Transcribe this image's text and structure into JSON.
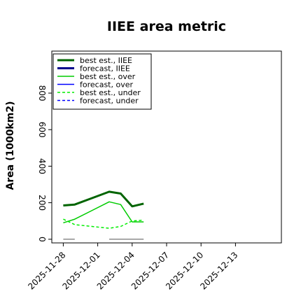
{
  "chart_data": {
    "type": "line",
    "title": "IIEE area metric",
    "ylabel": "Area (1000km2)",
    "xlabel": "",
    "ylim": [
      -20,
      1030
    ],
    "yticks": [
      0,
      200,
      400,
      600,
      800
    ],
    "x_tick_labels": [
      {
        "label": "2025-11-28",
        "color": "#000000"
      },
      {
        "label": "2025-12-01",
        "color": "#000000"
      },
      {
        "label": "2025-12-04",
        "color": "#008000"
      },
      {
        "label": "2025-12-07",
        "color": "#000000"
      },
      {
        "label": "2025-12-10",
        "color": "#000000"
      },
      {
        "label": "2025-12-13",
        "color": "#000000"
      }
    ],
    "x_range_days": [
      -1,
      19
    ],
    "grid": false,
    "legend_position": "top-left",
    "series": [
      {
        "name": "best est., IIEE",
        "color": "#006400",
        "style": "solid",
        "width": 3,
        "x": [
          0,
          1,
          4,
          5,
          6,
          7
        ],
        "y": [
          185,
          190,
          260,
          250,
          180,
          195
        ]
      },
      {
        "name": "forecast, IIEE",
        "color": "#00008b",
        "style": "solid",
        "width": 3,
        "x": [],
        "y": []
      },
      {
        "name": "best est., over",
        "color": "#00cc00",
        "style": "solid",
        "width": 1.5,
        "x": [
          0,
          1,
          4,
          5,
          6,
          7
        ],
        "y": [
          90,
          110,
          205,
          190,
          95,
          95
        ]
      },
      {
        "name": "forecast, over",
        "color": "#0000ff",
        "style": "solid",
        "width": 1.5,
        "x": [],
        "y": []
      },
      {
        "name": "best est., under",
        "color": "#00ee00",
        "style": "dashed",
        "width": 1.5,
        "x": [
          0,
          1,
          4,
          5,
          6,
          7
        ],
        "y": [
          110,
          80,
          60,
          70,
          100,
          105
        ]
      },
      {
        "name": "forecast, under",
        "color": "#0000ff",
        "style": "dashed",
        "width": 1.5,
        "x": [],
        "y": []
      },
      {
        "name": "",
        "color": "#555555",
        "style": "solid",
        "width": 1,
        "x": [
          0,
          1
        ],
        "y": [
          0,
          0
        ]
      },
      {
        "name": "",
        "color": "#555555",
        "style": "solid",
        "width": 1,
        "x": [
          4,
          7
        ],
        "y": [
          0,
          0
        ]
      }
    ]
  }
}
